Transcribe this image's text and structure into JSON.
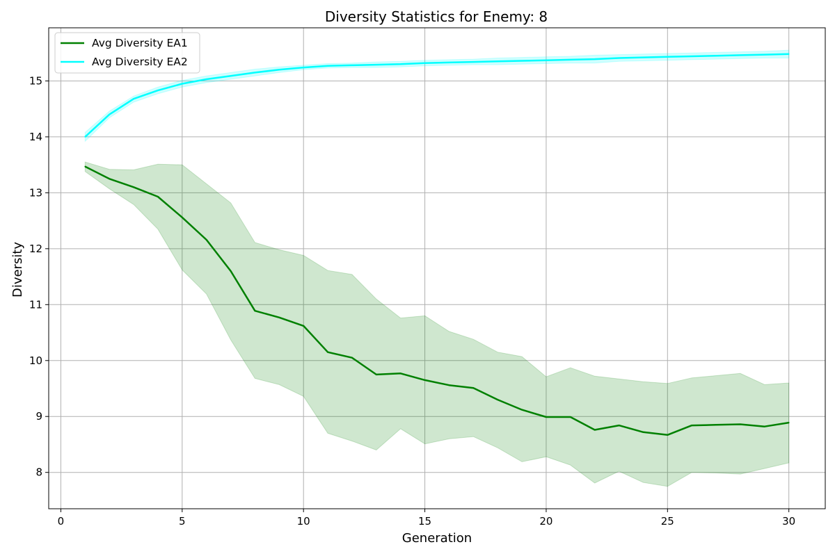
{
  "chart_data": {
    "type": "line",
    "title": "Diversity Statistics for Enemy: 8",
    "xlabel": "Generation",
    "ylabel": "Diversity",
    "xlim": [
      -0.5,
      31.5
    ],
    "ylim": [
      7.35,
      15.95
    ],
    "xticks": [
      0,
      5,
      10,
      15,
      20,
      25,
      30
    ],
    "yticks": [
      8,
      9,
      10,
      11,
      12,
      13,
      14,
      15
    ],
    "grid": true,
    "legend_position": "top-left",
    "x": [
      1,
      2,
      3,
      4,
      5,
      6,
      7,
      8,
      9,
      10,
      11,
      12,
      13,
      14,
      15,
      16,
      17,
      18,
      19,
      20,
      21,
      22,
      23,
      24,
      25,
      26,
      27,
      28,
      29,
      30
    ],
    "series": [
      {
        "name": "Avg Diversity EA1",
        "color": "#008000",
        "values": [
          13.47,
          13.25,
          13.1,
          12.93,
          12.56,
          12.16,
          11.6,
          10.89,
          10.77,
          10.62,
          10.15,
          10.05,
          9.75,
          9.77,
          9.65,
          9.56,
          9.51,
          9.3,
          9.12,
          8.99,
          8.99,
          8.76,
          8.84,
          8.72,
          8.67,
          8.84,
          8.85,
          8.86,
          8.82,
          8.89
        ],
        "upper": [
          13.55,
          13.42,
          13.41,
          13.51,
          13.5,
          13.16,
          12.82,
          12.11,
          11.98,
          11.88,
          11.61,
          11.54,
          11.1,
          10.76,
          10.8,
          10.52,
          10.38,
          10.15,
          10.07,
          9.71,
          9.87,
          9.72,
          9.67,
          9.62,
          9.59,
          9.69,
          9.73,
          9.77,
          9.57,
          9.6
        ],
        "lower": [
          13.38,
          13.07,
          12.79,
          12.35,
          11.62,
          11.19,
          10.37,
          9.68,
          9.57,
          9.36,
          8.7,
          8.56,
          8.4,
          8.78,
          8.51,
          8.6,
          8.64,
          8.44,
          8.19,
          8.28,
          8.13,
          7.81,
          8.02,
          7.82,
          7.75,
          8.0,
          7.99,
          7.97,
          8.07,
          8.17
        ]
      },
      {
        "name": "Avg Diversity EA2",
        "color": "#00ffff",
        "values": [
          14.0,
          14.4,
          14.68,
          14.83,
          14.95,
          15.03,
          15.09,
          15.15,
          15.2,
          15.24,
          15.27,
          15.28,
          15.29,
          15.3,
          15.32,
          15.33,
          15.34,
          15.35,
          15.36,
          15.37,
          15.38,
          15.39,
          15.41,
          15.42,
          15.43,
          15.44,
          15.45,
          15.46,
          15.47,
          15.48
        ],
        "upper": [
          14.08,
          14.46,
          14.73,
          14.89,
          15.01,
          15.09,
          15.15,
          15.21,
          15.25,
          15.28,
          15.31,
          15.32,
          15.34,
          15.35,
          15.37,
          15.38,
          15.39,
          15.41,
          15.42,
          15.43,
          15.44,
          15.46,
          15.47,
          15.48,
          15.49,
          15.5,
          15.51,
          15.52,
          15.53,
          15.55
        ],
        "lower": [
          13.92,
          14.34,
          14.62,
          14.77,
          14.89,
          14.97,
          15.03,
          15.09,
          15.15,
          15.2,
          15.23,
          15.24,
          15.24,
          15.25,
          15.27,
          15.28,
          15.29,
          15.29,
          15.3,
          15.31,
          15.32,
          15.32,
          15.35,
          15.36,
          15.37,
          15.38,
          15.39,
          15.4,
          15.41,
          15.41
        ]
      }
    ]
  }
}
